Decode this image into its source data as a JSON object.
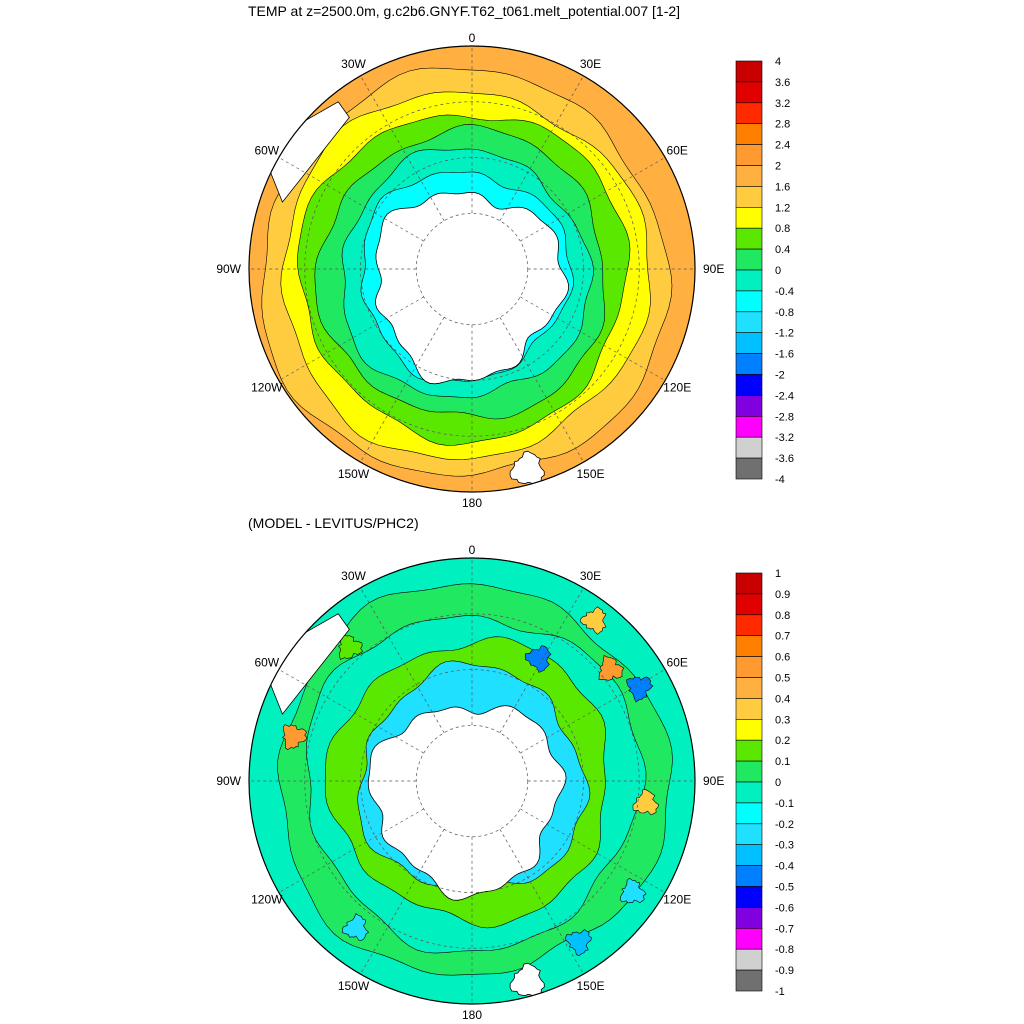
{
  "titles": {
    "top": "TEMP at z=2500.0m, g.c2b6.GNYF.T62_t061.melt_potential.007 [1-2]",
    "bottom": "(MODEL - LEVITUS/PHC2)"
  },
  "map_labels": [
    "0",
    "30E",
    "60E",
    "90E",
    "120E",
    "150E",
    "180",
    "150W",
    "120W",
    "90W",
    "60W",
    "30W"
  ],
  "colorbar_top": {
    "labels": [
      "4",
      "3.6",
      "3.2",
      "2.8",
      "2.4",
      "2",
      "1.6",
      "1.2",
      "0.8",
      "0.4",
      "0",
      "-0.4",
      "-0.8",
      "-1.2",
      "-1.6",
      "-2",
      "-2.4",
      "-2.8",
      "-3.2",
      "-3.6",
      "-4"
    ],
    "colors": [
      "#c80000",
      "#e00000",
      "#ff2a00",
      "#ff8000",
      "#ff9a30",
      "#ffb040",
      "#ffcc40",
      "#ffff00",
      "#5ae800",
      "#20e860",
      "#00f0c0",
      "#00ffff",
      "#20e0ff",
      "#00c0ff",
      "#0080ff",
      "#0000ff",
      "#8000e0",
      "#ff00ff",
      "#d0d0d0",
      "#707070"
    ]
  },
  "colorbar_bottom": {
    "labels": [
      "1",
      "0.9",
      "0.8",
      "0.7",
      "0.6",
      "0.5",
      "0.4",
      "0.3",
      "0.2",
      "0.1",
      "0",
      "-0.1",
      "-0.2",
      "-0.3",
      "-0.4",
      "-0.5",
      "-0.6",
      "-0.7",
      "-0.8",
      "-0.9",
      "-1"
    ],
    "colors": [
      "#c80000",
      "#e00000",
      "#ff2a00",
      "#ff8000",
      "#ff9a30",
      "#ffb040",
      "#ffcc40",
      "#ffff00",
      "#5ae800",
      "#20e860",
      "#00f0c0",
      "#00ffff",
      "#20e0ff",
      "#00c0ff",
      "#0080ff",
      "#0000ff",
      "#8000e0",
      "#ff00ff",
      "#d0d0d0",
      "#707070"
    ]
  },
  "fields": {
    "top": {
      "ring_colors": [
        "#ffb040",
        "#ffcc40",
        "#ffff00",
        "#5ae800",
        "#20e860",
        "#00f0c0",
        "#00ffff"
      ]
    },
    "bottom": {
      "ring_colors": [
        "#00f0c0",
        "#20e860",
        "#00f0c0",
        "#5ae800",
        "#20e0ff"
      ]
    }
  }
}
